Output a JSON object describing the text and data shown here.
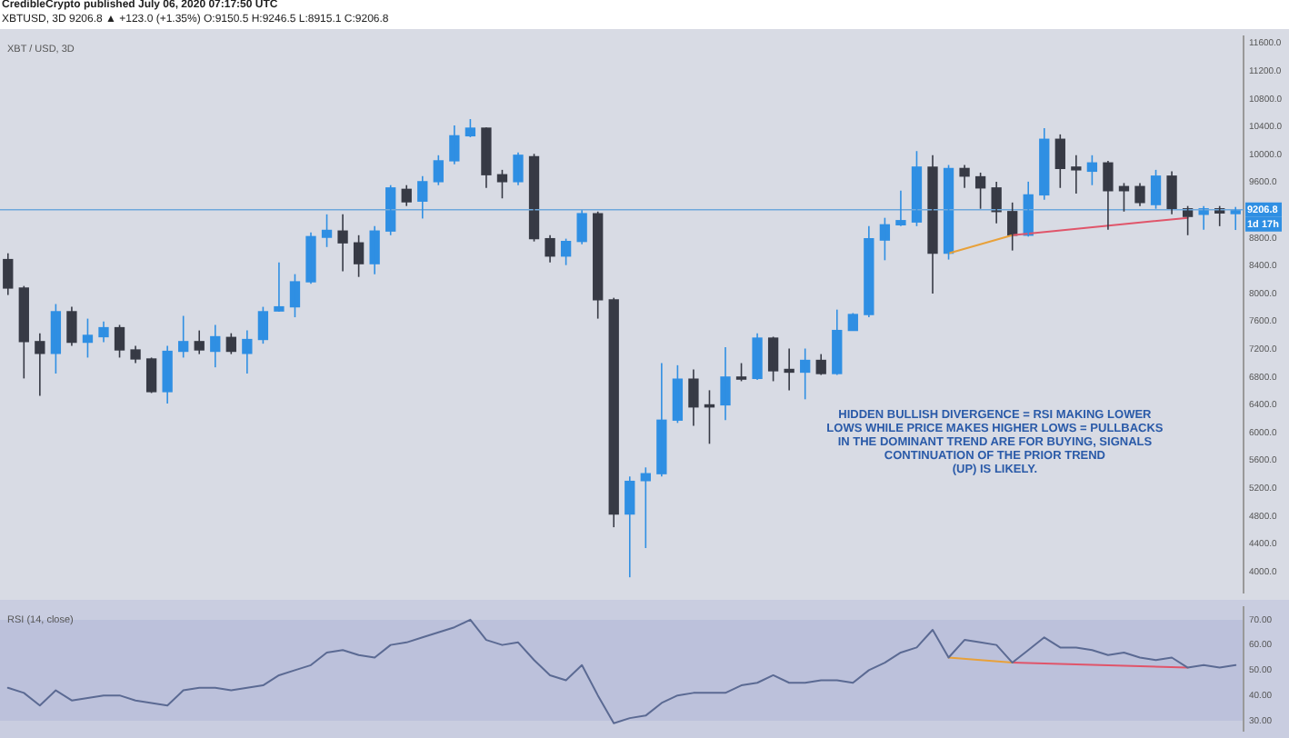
{
  "chart_data": [
    {
      "type": "candlestick",
      "title": "XBT / USD, 3D",
      "annotations": [
        "CredibleCrypto published July 06, 2020 07:17:50 UTC",
        "XBTUSD, 3D 9206.8 ▲ +123.0 (+1.35%) O:9150.5 H:9246.5 L:8915.1 C:9206.8",
        "HIDDEN BULLISH DIVERGENCE = RSI MAKING LOWER\nLOWS WHILE PRICE MAKES HIGHER LOWS = PULLBACKS\nIN THE DOMINANT TREND ARE FOR BUYING, SIGNALS\nCONTINUATION OF THE PRIOR TREND\n(UP) IS LIKELY.",
        "1d 17h"
      ],
      "categories": [
        null,
        null,
        null,
        null,
        null,
        null,
        null,
        null,
        null,
        null,
        null,
        null,
        null,
        null,
        null,
        null,
        null,
        null,
        null,
        null,
        null,
        null,
        null,
        null,
        null,
        null,
        null,
        null,
        null,
        null,
        null,
        null,
        null,
        null,
        null,
        null,
        null,
        null,
        null,
        null,
        null,
        null,
        null,
        null,
        null,
        null,
        null,
        null,
        null,
        null,
        null,
        null,
        null,
        null,
        null,
        null,
        null,
        null,
        null,
        null,
        null,
        null,
        null,
        null,
        null,
        null,
        null,
        null,
        null,
        null,
        null,
        null,
        null,
        null,
        null,
        null,
        null,
        null
      ],
      "ohlc": [
        [
          8490,
          8580,
          7980,
          8080
        ],
        [
          8080,
          8110,
          6780,
          7310
        ],
        [
          7310,
          7430,
          6530,
          7140
        ],
        [
          7140,
          7850,
          6850,
          7740
        ],
        [
          7740,
          7810,
          7250,
          7300
        ],
        [
          7300,
          7640,
          7080,
          7400
        ],
        [
          7380,
          7600,
          7300,
          7510
        ],
        [
          7510,
          7550,
          7080,
          7190
        ],
        [
          7190,
          7250,
          7000,
          7060
        ],
        [
          7060,
          7080,
          6570,
          6590
        ],
        [
          6590,
          7250,
          6420,
          7170
        ],
        [
          7170,
          7680,
          7080,
          7310
        ],
        [
          7310,
          7470,
          7130,
          7190
        ],
        [
          7170,
          7550,
          6940,
          7380
        ],
        [
          7370,
          7430,
          7130,
          7170
        ],
        [
          7140,
          7470,
          6850,
          7340
        ],
        [
          7340,
          7810,
          7280,
          7740
        ],
        [
          7750,
          8450,
          7740,
          7810
        ],
        [
          7810,
          8280,
          7660,
          8170
        ],
        [
          8170,
          8880,
          8140,
          8820
        ],
        [
          8810,
          9140,
          8670,
          8910
        ],
        [
          8900,
          9140,
          8320,
          8730
        ],
        [
          8730,
          8840,
          8240,
          8430
        ],
        [
          8430,
          8970,
          8280,
          8900
        ],
        [
          8900,
          9560,
          8840,
          9520
        ],
        [
          9500,
          9560,
          9260,
          9320
        ],
        [
          9330,
          9690,
          9080,
          9610
        ],
        [
          9610,
          9990,
          9560,
          9910
        ],
        [
          9910,
          10420,
          9860,
          10270
        ],
        [
          10270,
          10510,
          10250,
          10380
        ],
        [
          10380,
          10390,
          9520,
          9710
        ],
        [
          9710,
          9780,
          9370,
          9610
        ],
        [
          9610,
          10030,
          9560,
          9990
        ],
        [
          9970,
          10010,
          8750,
          8790
        ],
        [
          8790,
          8840,
          8450,
          8540
        ],
        [
          8540,
          8790,
          8410,
          8750
        ],
        [
          8750,
          9200,
          8710,
          9150
        ],
        [
          9150,
          9180,
          7640,
          7910
        ],
        [
          7910,
          7940,
          4640,
          4830
        ],
        [
          4830,
          5370,
          3920,
          5300
        ],
        [
          5310,
          5500,
          4340,
          5410
        ],
        [
          5410,
          7000,
          5370,
          6180
        ],
        [
          6180,
          6970,
          6140,
          6770
        ],
        [
          6770,
          6910,
          6100,
          6370
        ],
        [
          6400,
          6610,
          5840,
          6370
        ],
        [
          6400,
          7230,
          6180,
          6800
        ],
        [
          6800,
          7000,
          6740,
          6770
        ],
        [
          6780,
          7430,
          6760,
          7360
        ],
        [
          7360,
          7380,
          6740,
          6890
        ],
        [
          6910,
          7210,
          6610,
          6870
        ],
        [
          6870,
          7210,
          6480,
          7040
        ],
        [
          7040,
          7130,
          6830,
          6850
        ],
        [
          6850,
          7770,
          6830,
          7470
        ],
        [
          7470,
          7720,
          7470,
          7700
        ],
        [
          7700,
          8970,
          7660,
          8790
        ],
        [
          8770,
          9090,
          8480,
          8990
        ],
        [
          8990,
          9480,
          8970,
          9050
        ],
        [
          9030,
          10050,
          8970,
          9820
        ],
        [
          9820,
          9990,
          8000,
          8580
        ],
        [
          8580,
          9850,
          8490,
          9800
        ],
        [
          9800,
          9850,
          9520,
          9690
        ],
        [
          9680,
          9740,
          9220,
          9520
        ],
        [
          9520,
          9610,
          9010,
          9180
        ],
        [
          9180,
          9310,
          8620,
          8840
        ],
        [
          8840,
          9610,
          8820,
          9420
        ],
        [
          9420,
          10380,
          9350,
          10220
        ],
        [
          10220,
          10290,
          9520,
          9800
        ],
        [
          9820,
          9990,
          9440,
          9780
        ],
        [
          9760,
          9990,
          9560,
          9880
        ],
        [
          9880,
          9910,
          8920,
          9480
        ],
        [
          9540,
          9590,
          9180,
          9480
        ],
        [
          9540,
          9590,
          9260,
          9310
        ],
        [
          9280,
          9780,
          9220,
          9690
        ],
        [
          9690,
          9760,
          9140,
          9220
        ],
        [
          9220,
          9260,
          8840,
          9110
        ],
        [
          9140,
          9260,
          8920,
          9220
        ],
        [
          9220,
          9260,
          8970,
          9160
        ],
        [
          9150.5,
          9246.5,
          8915.1,
          9206.8
        ]
      ],
      "colors": [
        "#373a45",
        "#373a45",
        "#373a45",
        "#2f8fe3",
        "#373a45",
        "#2f8fe3",
        "#2f8fe3",
        "#373a45",
        "#373a45",
        "#373a45",
        "#2f8fe3",
        "#2f8fe3",
        "#373a45",
        "#2f8fe3",
        "#373a45",
        "#2f8fe3",
        "#2f8fe3",
        "#2f8fe3",
        "#2f8fe3",
        "#2f8fe3",
        "#2f8fe3",
        "#373a45",
        "#373a45",
        "#2f8fe3",
        "#2f8fe3",
        "#373a45",
        "#2f8fe3",
        "#2f8fe3",
        "#2f8fe3",
        "#2f8fe3",
        "#373a45",
        "#373a45",
        "#2f8fe3",
        "#373a45",
        "#373a45",
        "#2f8fe3",
        "#2f8fe3",
        "#373a45",
        "#373a45",
        "#2f8fe3",
        "#2f8fe3",
        "#2f8fe3",
        "#2f8fe3",
        "#373a45",
        "#373a45",
        "#2f8fe3",
        "#373a45",
        "#2f8fe3",
        "#373a45",
        "#373a45",
        "#2f8fe3",
        "#373a45",
        "#2f8fe3",
        "#2f8fe3",
        "#2f8fe3",
        "#2f8fe3",
        "#2f8fe3",
        "#2f8fe3",
        "#373a45",
        "#2f8fe3",
        "#373a45",
        "#373a45",
        "#373a45",
        "#373a45",
        "#2f8fe3",
        "#2f8fe3",
        "#373a45",
        "#373a45",
        "#2f8fe3",
        "#373a45",
        "#373a45",
        "#373a45",
        "#2f8fe3",
        "#373a45",
        "#373a45",
        "#2f8fe3",
        "#373a45",
        "#2f8fe3"
      ],
      "series": [
        {
          "type": "line",
          "color": "#e8a13a",
          "values": [
            null,
            null,
            null,
            null,
            null,
            null,
            null,
            null,
            null,
            null,
            null,
            null,
            null,
            null,
            null,
            null,
            null,
            null,
            null,
            null,
            null,
            null,
            null,
            null,
            null,
            null,
            null,
            null,
            null,
            null,
            null,
            null,
            null,
            null,
            null,
            null,
            null,
            null,
            null,
            null,
            null,
            null,
            null,
            null,
            null,
            null,
            null,
            null,
            null,
            null,
            null,
            null,
            null,
            null,
            null,
            null,
            null,
            null,
            null,
            8580,
            null,
            null,
            null,
            8840,
            null,
            null,
            null,
            null,
            null,
            null,
            null,
            null,
            null,
            null,
            null,
            null,
            null,
            null
          ]
        },
        {
          "type": "line",
          "color": "#e0556a",
          "values": [
            null,
            null,
            null,
            null,
            null,
            null,
            null,
            null,
            null,
            null,
            null,
            null,
            null,
            null,
            null,
            null,
            null,
            null,
            null,
            null,
            null,
            null,
            null,
            null,
            null,
            null,
            null,
            null,
            null,
            null,
            null,
            null,
            null,
            null,
            null,
            null,
            null,
            null,
            null,
            null,
            null,
            null,
            null,
            null,
            null,
            null,
            null,
            null,
            null,
            null,
            null,
            null,
            null,
            null,
            null,
            null,
            null,
            null,
            null,
            null,
            null,
            null,
            null,
            8840,
            null,
            null,
            null,
            null,
            null,
            null,
            null,
            null,
            null,
            null,
            9090,
            null,
            null,
            null
          ]
        }
      ],
      "ref_lines": [
        {
          "axis": "y",
          "value": 9206.8,
          "label": "9206.8",
          "color": "#6fa8dc"
        }
      ],
      "ylim": [
        3700,
        11700
      ],
      "yticks": [
        {
          "value": 4000,
          "label": "4000.0"
        },
        {
          "value": 4400,
          "label": "4400.0"
        },
        {
          "value": 4800,
          "label": "4800.0"
        },
        {
          "value": 5200,
          "label": "5200.0"
        },
        {
          "value": 5600,
          "label": "5600.0"
        },
        {
          "value": 6000,
          "label": "6000.0"
        },
        {
          "value": 6400,
          "label": "6400.0"
        },
        {
          "value": 6800,
          "label": "6800.0"
        },
        {
          "value": 7200,
          "label": "7200.0"
        },
        {
          "value": 7600,
          "label": "7600.0"
        },
        {
          "value": 8000,
          "label": "8000.0"
        },
        {
          "value": 8400,
          "label": "8400.0"
        },
        {
          "value": 8800,
          "label": "8800.0"
        },
        {
          "value": 9600,
          "label": "9600.0"
        },
        {
          "value": 10000,
          "label": "10000.0"
        },
        {
          "value": 10400,
          "label": "10400.0"
        },
        {
          "value": 10800,
          "label": "10800.0"
        },
        {
          "value": 11200,
          "label": "11200.0"
        },
        {
          "value": 11600,
          "label": "11600.0"
        }
      ],
      "tick_labels": "y"
    },
    {
      "type": "line",
      "title": "RSI (14, close)",
      "categories": [
        null,
        null,
        null,
        null,
        null,
        null,
        null,
        null,
        null,
        null,
        null,
        null,
        null,
        null,
        null,
        null,
        null,
        null,
        null,
        null,
        null,
        null,
        null,
        null,
        null,
        null,
        null,
        null,
        null,
        null,
        null,
        null,
        null,
        null,
        null,
        null,
        null,
        null,
        null,
        null,
        null,
        null,
        null,
        null,
        null,
        null,
        null,
        null,
        null,
        null,
        null,
        null,
        null,
        null,
        null,
        null,
        null,
        null,
        null,
        null,
        null,
        null,
        null,
        null,
        null,
        null,
        null,
        null,
        null,
        null,
        null,
        null,
        null,
        null,
        null,
        null,
        null,
        null
      ],
      "series": [
        {
          "type": "line",
          "color": "#5b6a93",
          "values": [
            43,
            41,
            36,
            42,
            38,
            39,
            40,
            40,
            38,
            37,
            36,
            42,
            43,
            43,
            42,
            43,
            44,
            48,
            50,
            52,
            57,
            58,
            56,
            55,
            60,
            61,
            63,
            65,
            67,
            70,
            62,
            60,
            61,
            54,
            48,
            46,
            52,
            40,
            29,
            31,
            32,
            37,
            40,
            41,
            41,
            41,
            44,
            45,
            48,
            45,
            45,
            46,
            46,
            45,
            50,
            53,
            57,
            59,
            66,
            55,
            62,
            61,
            60,
            53,
            58,
            63,
            59,
            59,
            58,
            56,
            57,
            55,
            54,
            55,
            51,
            52,
            51,
            52
          ]
        },
        {
          "type": "line",
          "color": "#e8a13a",
          "values": [
            null,
            null,
            null,
            null,
            null,
            null,
            null,
            null,
            null,
            null,
            null,
            null,
            null,
            null,
            null,
            null,
            null,
            null,
            null,
            null,
            null,
            null,
            null,
            null,
            null,
            null,
            null,
            null,
            null,
            null,
            null,
            null,
            null,
            null,
            null,
            null,
            null,
            null,
            null,
            null,
            null,
            null,
            null,
            null,
            null,
            null,
            null,
            null,
            null,
            null,
            null,
            null,
            null,
            null,
            null,
            null,
            null,
            null,
            null,
            55,
            null,
            null,
            null,
            53,
            null,
            null,
            null,
            null,
            null,
            null,
            null,
            null,
            null,
            null,
            null,
            null,
            null,
            null
          ]
        },
        {
          "type": "line",
          "color": "#e0556a",
          "values": [
            null,
            null,
            null,
            null,
            null,
            null,
            null,
            null,
            null,
            null,
            null,
            null,
            null,
            null,
            null,
            null,
            null,
            null,
            null,
            null,
            null,
            null,
            null,
            null,
            null,
            null,
            null,
            null,
            null,
            null,
            null,
            null,
            null,
            null,
            null,
            null,
            null,
            null,
            null,
            null,
            null,
            null,
            null,
            null,
            null,
            null,
            null,
            null,
            null,
            null,
            null,
            null,
            null,
            null,
            null,
            null,
            null,
            null,
            null,
            null,
            null,
            null,
            null,
            53,
            null,
            null,
            null,
            null,
            null,
            null,
            null,
            null,
            null,
            null,
            51,
            null,
            null,
            null
          ]
        }
      ],
      "bands": [
        {
          "axis": "y",
          "from": 30,
          "to": 70,
          "color": "#bcc1db"
        }
      ],
      "ylim": [
        26,
        75
      ],
      "yticks": [
        {
          "value": 30,
          "label": "30.00"
        },
        {
          "value": 40,
          "label": "40.00"
        },
        {
          "value": 50,
          "label": "50.00"
        },
        {
          "value": 60,
          "label": "60.00"
        },
        {
          "value": 70,
          "label": "70.00"
        }
      ],
      "tick_labels": "y"
    }
  ]
}
